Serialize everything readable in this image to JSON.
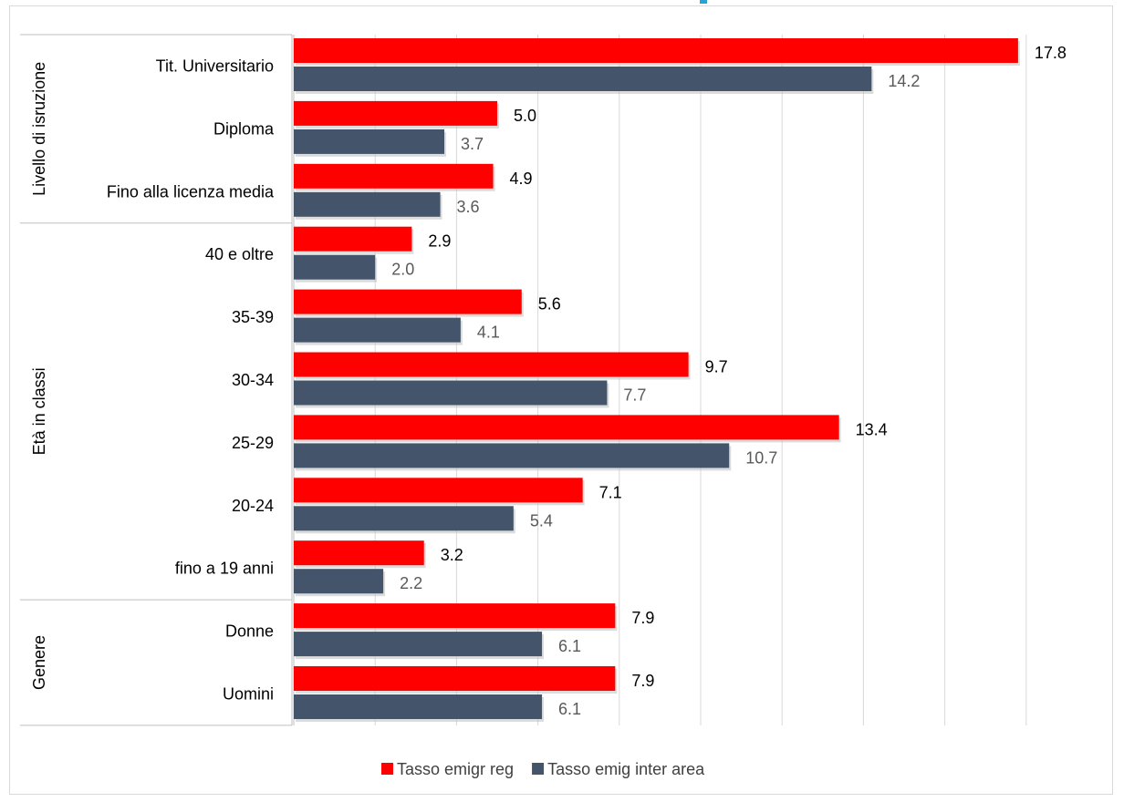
{
  "chart_data": {
    "type": "bar",
    "orientation": "horizontal",
    "title": "",
    "xlabel": "",
    "ylabel": "",
    "xlim": [
      0,
      18
    ],
    "grid": true,
    "legend_position": "bottom",
    "groups": [
      {
        "name": "Livello di isruzione",
        "categories": [
          "Tit. Universitario",
          "Diploma",
          "Fino alla licenza media"
        ]
      },
      {
        "name": "Età in classi",
        "categories": [
          "40 e oltre",
          "35-39",
          "30-34",
          "25-29",
          "20-24",
          "fino a 19 anni"
        ]
      },
      {
        "name": "Genere",
        "categories": [
          "Donne",
          "Uomini"
        ]
      }
    ],
    "categories": [
      "Tit. Universitario",
      "Diploma",
      "Fino alla licenza media",
      "40 e oltre",
      "35-39",
      "30-34",
      "25-29",
      "20-24",
      "fino a 19 anni",
      "Donne",
      "Uomini"
    ],
    "series": [
      {
        "name": "Tasso emigr reg",
        "color": "#ff0000",
        "label_color": "#000000",
        "values": [
          17.8,
          5.0,
          4.9,
          2.9,
          5.6,
          9.7,
          13.4,
          7.1,
          3.2,
          7.9,
          7.9
        ]
      },
      {
        "name": "Tasso emig inter area",
        "color": "#44546a",
        "label_color": "#595959",
        "values": [
          14.2,
          3.7,
          3.6,
          2.0,
          4.1,
          7.7,
          10.7,
          5.4,
          2.2,
          6.1,
          6.1
        ]
      }
    ]
  },
  "colors": {
    "accent": "#29a3d6",
    "grid": "#d9d9d9",
    "frame": "#d9d9d9"
  }
}
